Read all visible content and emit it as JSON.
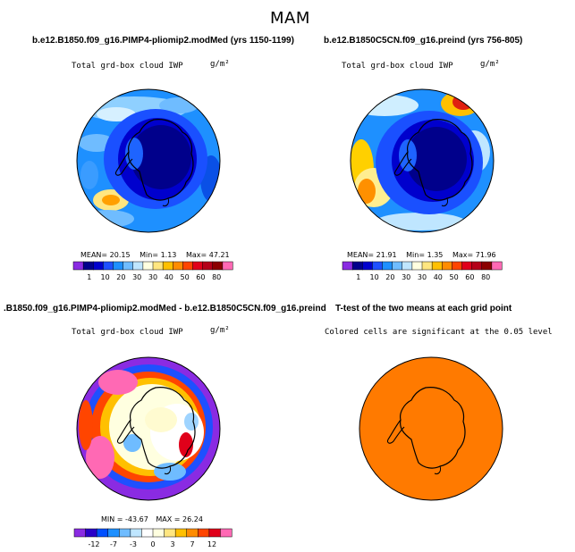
{
  "main_title": "MAM",
  "panels": [
    {
      "title": "b.e12.B1850.f09_g16.PIMP4-pliomip2.modMed (yrs 1150-1199)",
      "variable": "Total grd-box cloud IWP",
      "units": "g/m²",
      "stats": {
        "mean_label": "MEAN=",
        "mean": "20.15",
        "min_label": "Min=",
        "min": "1.13",
        "max_label": "Max=",
        "max": "47.21"
      },
      "colorbar": {
        "colors": [
          "#8a2be2",
          "#00008b",
          "#0000cd",
          "#1e50ff",
          "#1e90ff",
          "#6fbcff",
          "#bfe6ff",
          "#ffffe0",
          "#ffe680",
          "#ffc000",
          "#ff8c00",
          "#ff4500",
          "#e0001a",
          "#b40019",
          "#8b0000",
          "#ff69b4"
        ],
        "labels": [
          "1",
          "10",
          "20",
          "30",
          "30",
          "40",
          "50",
          "60",
          "80"
        ]
      }
    },
    {
      "title": "b.e12.B1850C5CN.f09_g16.preind (yrs 756-805)",
      "variable": "Total grd-box cloud IWP",
      "units": "g/m²",
      "stats": {
        "mean_label": "MEAN=",
        "mean": "21.91",
        "min_label": "Min=",
        "min": "1.35",
        "max_label": "Max=",
        "max": "71.96"
      },
      "colorbar": {
        "colors": [
          "#8a2be2",
          "#00008b",
          "#0000cd",
          "#1e50ff",
          "#1e90ff",
          "#6fbcff",
          "#bfe6ff",
          "#ffffe0",
          "#ffe680",
          "#ffc000",
          "#ff8c00",
          "#ff4500",
          "#e0001a",
          "#b40019",
          "#8b0000",
          "#ff69b4"
        ],
        "labels": [
          "1",
          "10",
          "20",
          "30",
          "30",
          "40",
          "50",
          "60",
          "80"
        ]
      }
    },
    {
      "title": ".B1850.f09_g16.PIMP4-pliomip2.modMed - b.e12.B1850C5CN.f09_g16.preind",
      "variable": "Total grd-box cloud IWP",
      "units": "g/m²",
      "stats": {
        "min_label": "MIN =",
        "min": "-43.67",
        "max_label": "MAX =",
        "max": "26.24"
      },
      "colorbar": {
        "colors": [
          "#8a2be2",
          "#2a00c8",
          "#0050ff",
          "#1e90ff",
          "#6fbcff",
          "#bfe6ff",
          "#ffffff",
          "#ffffe0",
          "#ffe680",
          "#ffc000",
          "#ff8c00",
          "#ff4500",
          "#e0001a",
          "#ff69b4"
        ],
        "labels": [
          "-12",
          "-7",
          "-3",
          "0",
          "3",
          "7",
          "12"
        ]
      }
    },
    {
      "title": "T-test of the two means at each grid point",
      "note": "Colored cells are significant at the 0.05 level",
      "fill_color": "#ff7a00"
    }
  ]
}
